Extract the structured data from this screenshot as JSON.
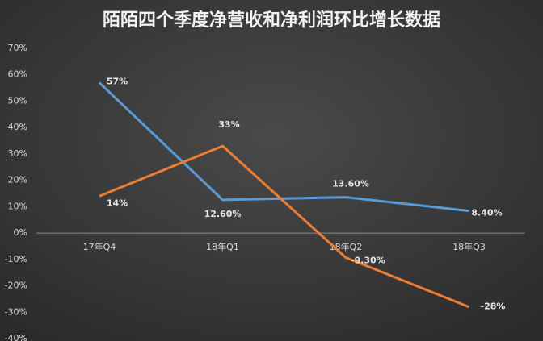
{
  "chart_data": {
    "type": "line",
    "title": "陌陌四个季度净营收和净利润环比增长数据",
    "categories": [
      "17年Q4",
      "18年Q1",
      "18年Q2",
      "18年Q3"
    ],
    "series": [
      {
        "color": "#5b9bd5",
        "values": [
          57,
          12.6,
          13.6,
          8.4
        ],
        "value_labels": [
          "57%",
          "12.60%",
          "13.60%",
          "8.40%"
        ]
      },
      {
        "color": "#ed7d31",
        "values": [
          14,
          33,
          -9.3,
          -28
        ],
        "value_labels": [
          "14%",
          "33%",
          "-9.30%",
          "-28%"
        ]
      }
    ],
    "ylim": [
      -40,
      70
    ],
    "yticks": [
      {
        "value": 70,
        "label": "70%"
      },
      {
        "value": 60,
        "label": "60%"
      },
      {
        "value": 50,
        "label": "50%"
      },
      {
        "value": 40,
        "label": "40%"
      },
      {
        "value": 30,
        "label": "30%"
      },
      {
        "value": 20,
        "label": "20%"
      },
      {
        "value": 10,
        "label": "10%"
      },
      {
        "value": 0,
        "label": "0%"
      },
      {
        "value": -10,
        "label": "-10%"
      },
      {
        "value": -20,
        "label": "-20%"
      },
      {
        "value": -30,
        "label": "-30%"
      },
      {
        "value": -40,
        "label": "-40%"
      }
    ]
  }
}
